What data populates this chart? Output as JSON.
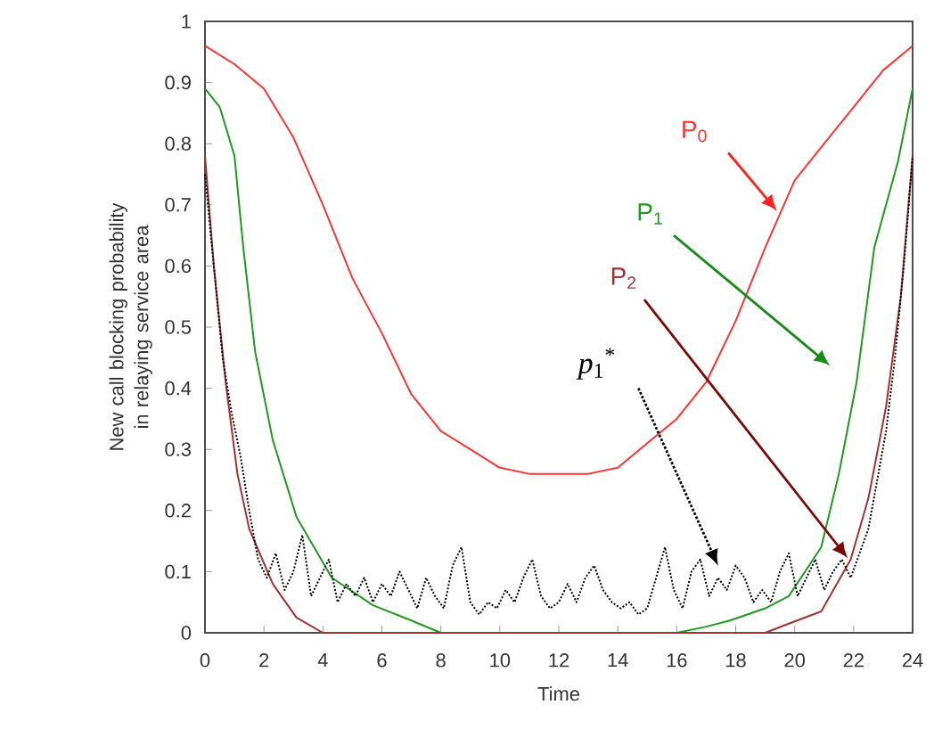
{
  "chart_data": {
    "type": "line",
    "xlabel": "Time",
    "ylabel": "New call blocking probability in relaying service area",
    "xlim": [
      0,
      24
    ],
    "xticks": [
      0,
      2,
      4,
      6,
      8,
      10,
      12,
      14,
      16,
      18,
      20,
      22,
      24
    ],
    "ylim": [
      0,
      1
    ],
    "yticks": [
      0,
      0.1,
      0.2,
      0.3,
      0.4,
      0.5,
      0.6,
      0.7,
      0.8,
      0.9,
      1
    ],
    "legend": false,
    "marker": "none",
    "series": [
      {
        "name": "P$_{0}$",
        "color": "#ff3333",
        "line_style": "solid",
        "x": [
          0,
          1,
          2,
          3,
          4,
          5,
          6,
          7,
          8,
          9,
          10,
          11,
          12,
          13,
          14,
          15,
          16,
          17,
          18,
          19,
          20,
          21,
          22,
          23,
          24
        ],
        "values": [
          0.96,
          0.93,
          0.89,
          0.81,
          0.7,
          0.58,
          0.49,
          0.39,
          0.33,
          0.3,
          0.27,
          0.26,
          0.26,
          0.26,
          0.27,
          0.31,
          0.35,
          0.41,
          0.51,
          0.63,
          0.74,
          0.8,
          0.86,
          0.92,
          0.96
        ]
      },
      {
        "name": "P$_{1}$",
        "color": "#1f9a1f",
        "line_style": "solid",
        "x": [
          0,
          0.5,
          1,
          1.3,
          1.7,
          2.3,
          3.1,
          4.3,
          5.7,
          7,
          8,
          16,
          17,
          17.8,
          19,
          19.8,
          20.9,
          21.5,
          22.1,
          22.7,
          23.5,
          24
        ],
        "values": [
          0.89,
          0.86,
          0.78,
          0.63,
          0.46,
          0.315,
          0.19,
          0.09,
          0.045,
          0.02,
          0,
          0,
          0.01,
          0.02,
          0.04,
          0.06,
          0.14,
          0.26,
          0.41,
          0.63,
          0.77,
          0.89
        ]
      },
      {
        "name": "P$_{2}$",
        "color": "#a3312f",
        "line_style": "solid",
        "x": [
          0,
          0.3,
          0.7,
          1.1,
          1.5,
          2.3,
          3.1,
          4,
          19,
          19.8,
          20.9,
          21.9,
          22.5,
          23.1,
          23.6,
          24
        ],
        "values": [
          0.78,
          0.6,
          0.41,
          0.26,
          0.17,
          0.08,
          0.025,
          0,
          0,
          0.015,
          0.035,
          0.12,
          0.22,
          0.37,
          0.55,
          0.78
        ]
      },
      {
        "name": "*p*$_{1}$$^{*}$",
        "color": "#000000",
        "line_style": "dotted",
        "x": [
          0,
          0.3,
          0.6,
          0.9,
          1.2,
          1.5,
          1.8,
          2.1,
          2.4,
          2.7,
          3.0,
          3.3,
          3.6,
          3.9,
          4.2,
          4.5,
          4.8,
          5.1,
          5.4,
          5.7,
          6.0,
          6.3,
          6.6,
          6.9,
          7.2,
          7.5,
          7.8,
          8.1,
          8.4,
          8.7,
          9.0,
          9.3,
          9.6,
          9.9,
          10.2,
          10.5,
          10.8,
          11.1,
          11.4,
          11.7,
          12.0,
          12.3,
          12.6,
          12.9,
          13.2,
          13.5,
          13.8,
          14.1,
          14.4,
          14.7,
          15.0,
          15.3,
          15.6,
          15.9,
          16.2,
          16.5,
          16.8,
          17.1,
          17.4,
          17.7,
          18.0,
          18.3,
          18.6,
          18.9,
          19.2,
          19.5,
          19.8,
          20.1,
          20.4,
          20.7,
          21.0,
          21.3,
          21.6,
          21.9,
          22.2,
          22.5,
          22.8,
          23.1,
          23.4,
          23.7,
          24
        ],
        "values": [
          0.75,
          0.6,
          0.45,
          0.36,
          0.29,
          0.2,
          0.12,
          0.09,
          0.13,
          0.07,
          0.1,
          0.16,
          0.06,
          0.09,
          0.12,
          0.05,
          0.08,
          0.06,
          0.09,
          0.05,
          0.08,
          0.06,
          0.1,
          0.07,
          0.04,
          0.09,
          0.06,
          0.04,
          0.11,
          0.14,
          0.05,
          0.03,
          0.05,
          0.04,
          0.07,
          0.05,
          0.09,
          0.12,
          0.06,
          0.04,
          0.05,
          0.08,
          0.05,
          0.09,
          0.11,
          0.07,
          0.05,
          0.04,
          0.05,
          0.03,
          0.04,
          0.09,
          0.14,
          0.07,
          0.04,
          0.1,
          0.12,
          0.06,
          0.09,
          0.07,
          0.11,
          0.09,
          0.05,
          0.07,
          0.05,
          0.1,
          0.13,
          0.06,
          0.09,
          0.12,
          0.07,
          0.1,
          0.12,
          0.09,
          0.13,
          0.17,
          0.25,
          0.33,
          0.45,
          0.6,
          0.78
        ]
      }
    ]
  }
}
